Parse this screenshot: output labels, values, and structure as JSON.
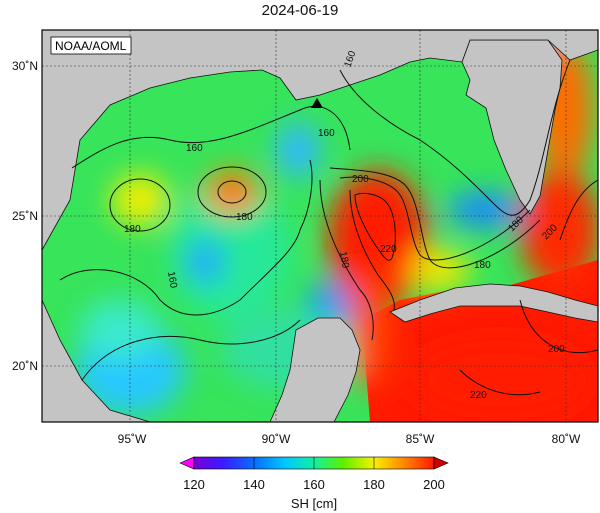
{
  "title": "2024-06-19",
  "credit": "NOAA/AOML",
  "map": {
    "lon_ticks": [
      "95˚W",
      "90˚W",
      "85˚W",
      "80˚W"
    ],
    "lat_ticks": [
      "30˚N",
      "25˚N",
      "20˚N"
    ],
    "contour_labels": [
      "160",
      "160",
      "160",
      "160",
      "180",
      "180",
      "180",
      "180",
      "200",
      "220",
      "180",
      "200",
      "200",
      "220"
    ],
    "marker": "station-triangle"
  },
  "colorbar": {
    "label": "SH [cm]",
    "ticks": [
      "120",
      "140",
      "160",
      "180",
      "200"
    ],
    "range": [
      120,
      200
    ]
  },
  "colors": {
    "land": "#c4c4c4",
    "high": "#ff1a00",
    "low": "#6a00d8"
  }
}
